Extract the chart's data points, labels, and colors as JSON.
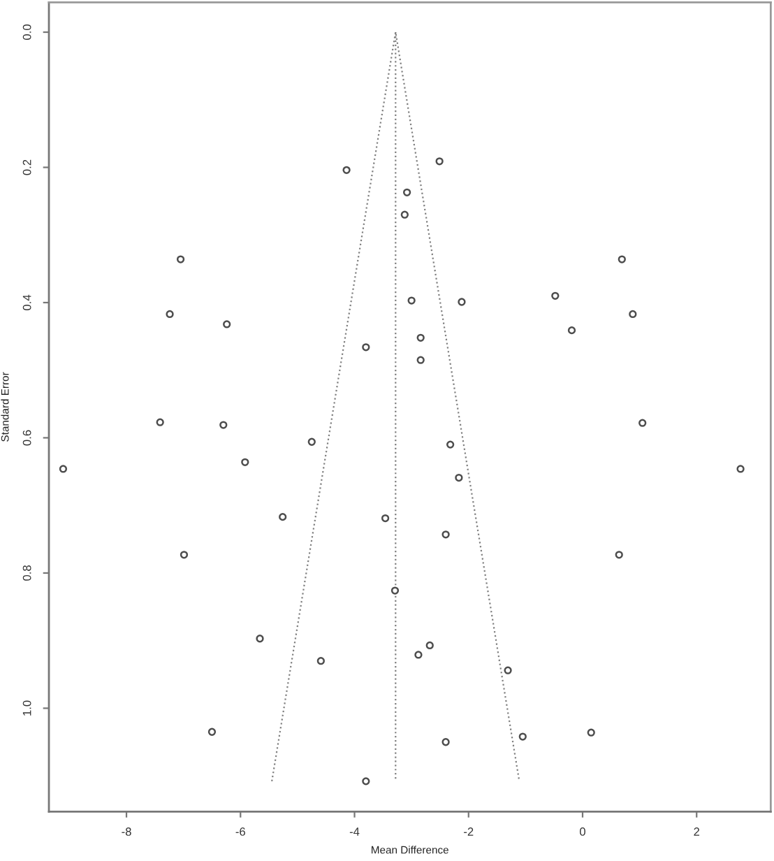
{
  "chart_data": {
    "type": "scatter",
    "xlabel": "Mean Difference",
    "ylabel": "Standard Error",
    "xlim": [
      -9.36,
      3.3
    ],
    "ylim": [
      1.153,
      -0.044
    ],
    "xticks": [
      -8,
      -6,
      -4,
      -2,
      0,
      2
    ],
    "yticks": [
      {
        "value": 0,
        "label": "0.0"
      },
      {
        "value": 0.2,
        "label": "0.2"
      },
      {
        "value": 0.4,
        "label": "0.4"
      },
      {
        "value": 0.6,
        "label": "0.6"
      },
      {
        "value": 0.8,
        "label": "0.8"
      },
      {
        "value": 1.0,
        "label": "1.0"
      }
    ],
    "marker": "circle",
    "series": [
      {
        "color": "#4d4d4d",
        "x": [
          -7.05,
          -7.24,
          -6.24,
          -7.41,
          -6.3,
          -9.11,
          -5.92,
          -6.99,
          -5.66,
          -6.5,
          -4.14,
          -2.51,
          -3.08,
          -3.12,
          -3.0,
          -2.12,
          -3.8,
          -2.84,
          -2.84,
          -4.75,
          -2.32,
          -2.17,
          -5.26,
          -3.46,
          -2.4,
          -3.29,
          -4.59,
          -2.68,
          -2.88,
          -1.31,
          -1.05,
          -2.4,
          -3.8,
          0.69,
          -0.48,
          0.88,
          -0.19,
          1.05,
          2.77,
          0.64,
          0.15
        ],
        "values": [
          0.336,
          0.417,
          0.432,
          0.577,
          0.581,
          0.646,
          0.636,
          0.773,
          0.897,
          1.035,
          0.204,
          0.191,
          0.237,
          0.27,
          0.397,
          0.399,
          0.466,
          0.452,
          0.485,
          0.606,
          0.61,
          0.659,
          0.717,
          0.719,
          0.743,
          0.826,
          0.93,
          0.907,
          0.921,
          0.944,
          1.042,
          1.05,
          1.108,
          0.336,
          0.39,
          0.417,
          0.441,
          0.578,
          0.646,
          0.773,
          1.036
        ]
      },
      {
        "type": "line",
        "color": "#808080",
        "line_style": "dotted",
        "marker": "none",
        "x": [
          -5.45,
          -3.28,
          -1.11
        ],
        "values": [
          1.108,
          0,
          1.108
        ]
      },
      {
        "type": "line",
        "color": "#808080",
        "line_style": "dotted",
        "marker": "none",
        "x": [
          -3.28,
          -3.28
        ],
        "values": [
          0,
          1.108
        ]
      }
    ]
  }
}
